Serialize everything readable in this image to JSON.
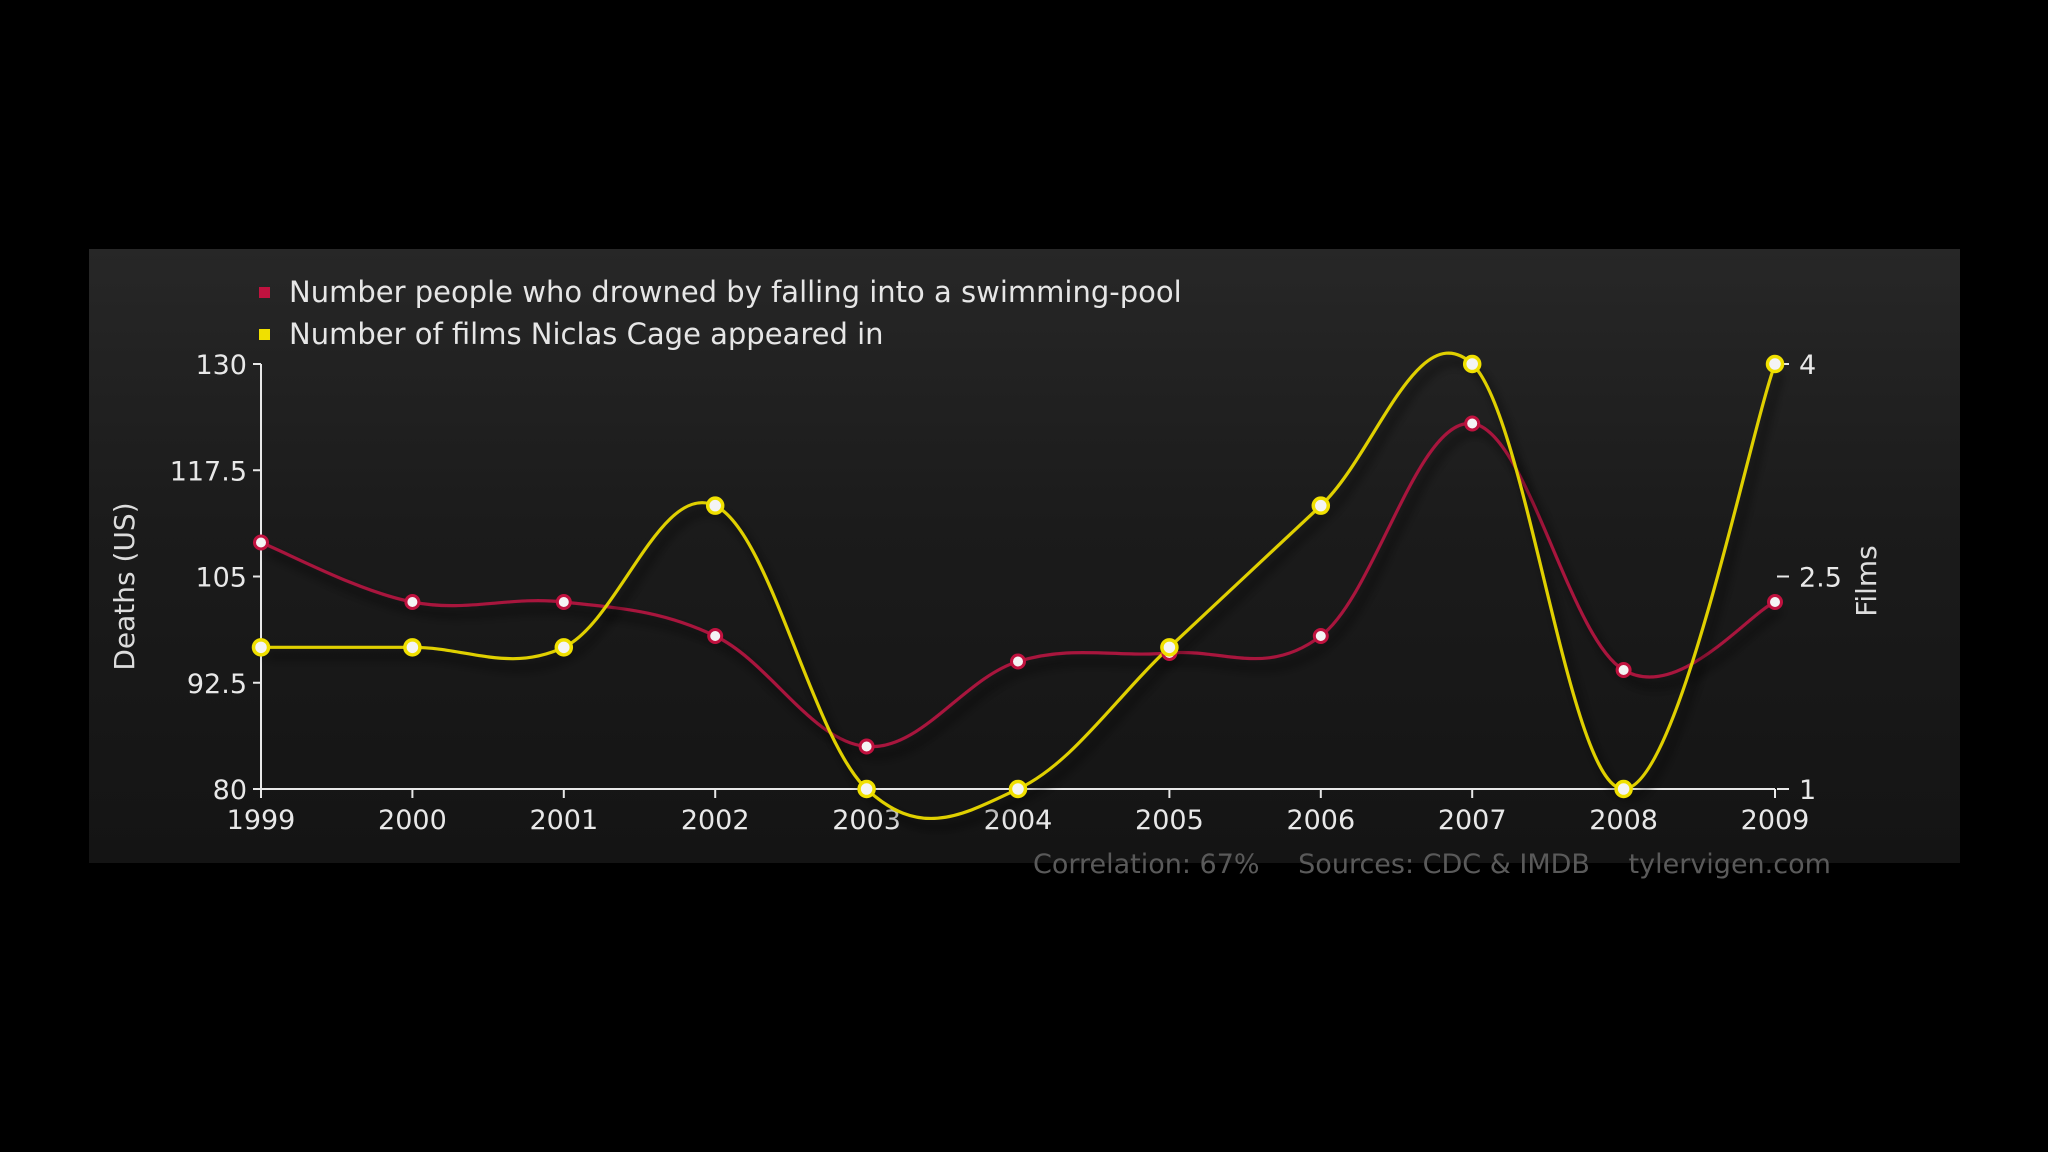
{
  "colors": {
    "background": "#000000",
    "panel": "#1c1c1c",
    "axis": "#e8e8e8",
    "series_drowning": "#a0103a",
    "series_films": "#d8c800",
    "footer_text": "#5a5a5a"
  },
  "footer": {
    "correlation": "Correlation: 67%",
    "sources": "Sources: CDC & IMDB",
    "site": "tylervigen.com"
  },
  "chart_data": {
    "type": "line",
    "x": [
      "1999",
      "2000",
      "2001",
      "2002",
      "2003",
      "2004",
      "2005",
      "2006",
      "2007",
      "2008",
      "2009"
    ],
    "series": [
      {
        "name": "Number people who drowned by falling into a swimming-pool",
        "color": "#a0103a",
        "axis": "left",
        "values": [
          109,
          102,
          102,
          98,
          85,
          95,
          96,
          98,
          123,
          94,
          102
        ]
      },
      {
        "name": "Number of films Niclas Cage appeared in",
        "color": "#d8c800",
        "axis": "right",
        "values": [
          2,
          2,
          2,
          3,
          1,
          1,
          2,
          3,
          4,
          1,
          4
        ]
      }
    ],
    "ylabel": "Deaths (US)",
    "y2label": "Films",
    "ylim": [
      80,
      130
    ],
    "yticks": [
      "80",
      "92.5",
      "105",
      "117.5",
      "130"
    ],
    "y2lim": [
      1,
      4
    ],
    "y2ticks": [
      "1",
      "2.5",
      "4"
    ],
    "legend_position": "top-left",
    "grid": false
  }
}
